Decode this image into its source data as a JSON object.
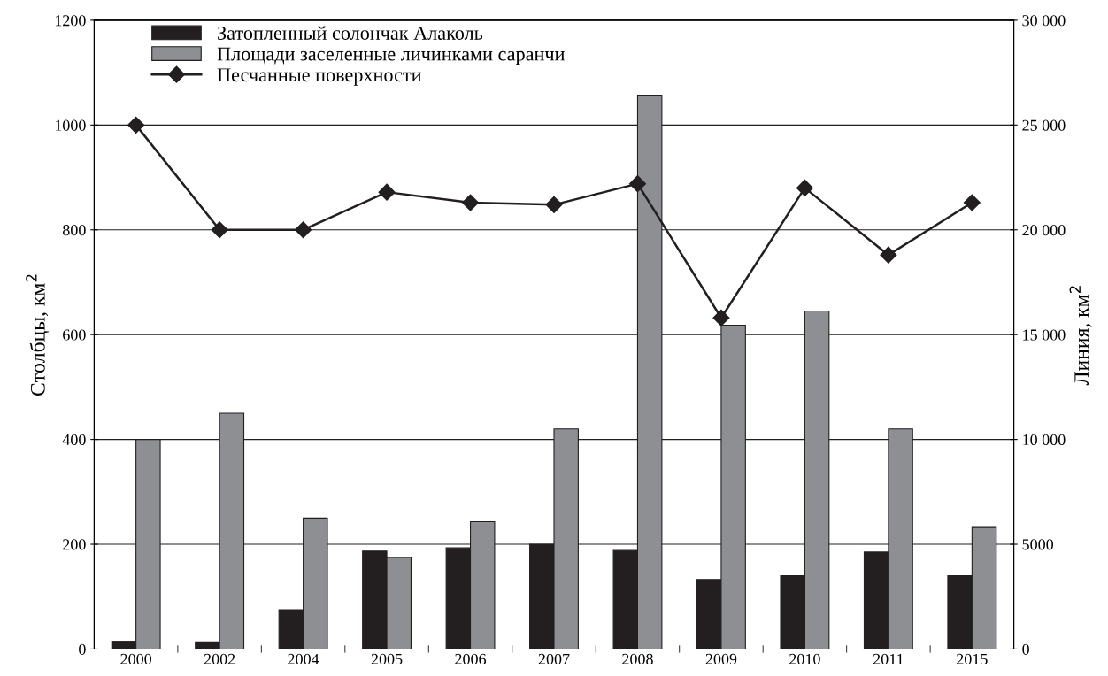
{
  "chart_data": {
    "type": "bar",
    "ylabel": "Столбцы, км$^{2}$",
    "y2label": "Линия, км$^{2}$",
    "categories": [
      "2000",
      "2002",
      "2004",
      "2005",
      "2006",
      "2007",
      "2008",
      "2009",
      "2010",
      "2011",
      "2015"
    ],
    "series": [
      {
        "name": "Затопленный солончак Алаколь",
        "color": "#231f20",
        "values": [
          14,
          12,
          75,
          187,
          193,
          200,
          188,
          133,
          140,
          185,
          140
        ]
      },
      {
        "name": "Площади заселенные личинками саранчи",
        "color": "#8e8f93",
        "values": [
          400,
          450,
          250,
          175,
          243,
          420,
          1057,
          618,
          645,
          420,
          232
        ]
      },
      {
        "name": "Песчанные поверхности",
        "color": "#231f20",
        "type": "line",
        "axis": "y2",
        "marker": "diamond",
        "line_style": "solid",
        "values": [
          25000,
          20000,
          20000,
          21800,
          21300,
          21200,
          22200,
          15800,
          22000,
          18800,
          21300
        ]
      }
    ],
    "ylim": [
      0,
      1200
    ],
    "yticks": [
      0,
      200,
      400,
      600,
      800,
      1000,
      1200
    ],
    "y2lim": [
      0,
      30000
    ],
    "y2ticks": [
      0,
      5000,
      {
        "value": 10000,
        "label": "10 000"
      },
      {
        "value": 15000,
        "label": "15 000"
      },
      {
        "value": 20000,
        "label": "20 000"
      },
      {
        "value": 25000,
        "label": "25 000"
      },
      {
        "value": 30000,
        "label": "30 000"
      }
    ],
    "grid": "y",
    "legend": "top left"
  }
}
